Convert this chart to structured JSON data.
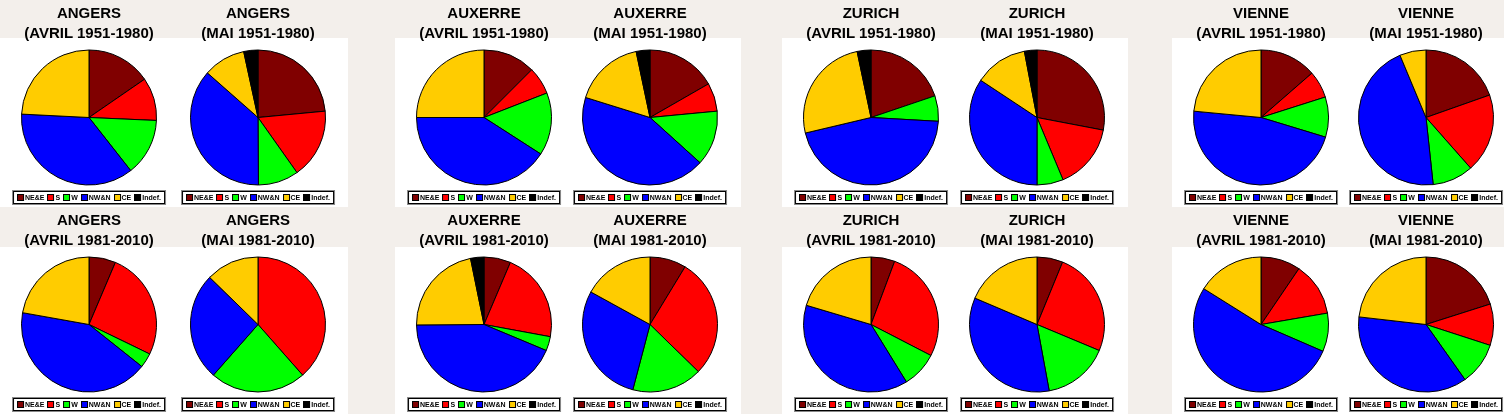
{
  "chart_data": [
    {
      "type": "pie",
      "title": "ANGERS\n(AVRIL 1951-1980)",
      "categories": [
        "NE&E",
        "S",
        "W",
        "NW&N",
        "CE",
        "Indef."
      ],
      "colors": [
        "#800000",
        "#ff0000",
        "#00ff00",
        "#0000ff",
        "#ffcc00",
        "#000000"
      ],
      "values": [
        15.4,
        10.3,
        13.7,
        36.4,
        24.2,
        0
      ],
      "legend": "bottom"
    },
    {
      "type": "pie",
      "title": "ANGERS\n(MAI 1951-1980)",
      "categories": [
        "NE&E",
        "S",
        "W",
        "NW&N",
        "CE",
        "Indef."
      ],
      "colors": [
        "#800000",
        "#ff0000",
        "#00ff00",
        "#0000ff",
        "#ffcc00",
        "#000000"
      ],
      "values": [
        23.5,
        16.7,
        9.7,
        36.6,
        10.1,
        3.4
      ],
      "legend": "bottom"
    },
    {
      "type": "pie",
      "title": "AUXERRE\n(AVRIL 1951-1980)",
      "categories": [
        "NE&E",
        "S",
        "W",
        "NW&N",
        "CE",
        "Indef."
      ],
      "colors": [
        "#800000",
        "#ff0000",
        "#00ff00",
        "#0000ff",
        "#ffcc00",
        "#000000"
      ],
      "values": [
        12.5,
        6.6,
        15,
        40.9,
        25,
        0
      ],
      "legend": "bottom"
    },
    {
      "type": "pie",
      "title": "AUXERRE\n(MAI 1951-1980)",
      "categories": [
        "NE&E",
        "S",
        "W",
        "NW&N",
        "CE",
        "Indef."
      ],
      "colors": [
        "#800000",
        "#ff0000",
        "#00ff00",
        "#0000ff",
        "#ffcc00",
        "#000000"
      ],
      "values": [
        16.7,
        6.8,
        13.2,
        43.1,
        16.9,
        3.3
      ],
      "legend": "bottom"
    },
    {
      "type": "pie",
      "title": "ZURICH\n(AVRIL 1951-1980)",
      "categories": [
        "NE&E",
        "S",
        "W",
        "NW&N",
        "CE",
        "Indef."
      ],
      "colors": [
        "#800000",
        "#ff0000",
        "#00ff00",
        "#0000ff",
        "#ffcc00",
        "#000000"
      ],
      "values": [
        19.8,
        0,
        6.1,
        45.4,
        25.4,
        3.3
      ],
      "legend": "bottom"
    },
    {
      "type": "pie",
      "title": "ZURICH\n(MAI 1951-1980)",
      "categories": [
        "NE&E",
        "S",
        "W",
        "NW&N",
        "CE",
        "Indef."
      ],
      "colors": [
        "#800000",
        "#ff0000",
        "#00ff00",
        "#0000ff",
        "#ffcc00",
        "#000000"
      ],
      "values": [
        28,
        15.7,
        6.3,
        34.3,
        12.7,
        3
      ],
      "legend": "bottom"
    },
    {
      "type": "pie",
      "title": "VIENNE\n(AVRIL 1951-1980)",
      "categories": [
        "NE&E",
        "S",
        "W",
        "NW&N",
        "CE",
        "Indef."
      ],
      "colors": [
        "#800000",
        "#ff0000",
        "#00ff00",
        "#0000ff",
        "#ffcc00",
        "#000000"
      ],
      "values": [
        13.6,
        6.5,
        9.6,
        46.8,
        23.5,
        0
      ],
      "legend": "bottom"
    },
    {
      "type": "pie",
      "title": "VIENNE\n(MAI 1951-1980)",
      "categories": [
        "NE&E",
        "S",
        "W",
        "NW&N",
        "CE",
        "Indef."
      ],
      "colors": [
        "#800000",
        "#ff0000",
        "#00ff00",
        "#0000ff",
        "#ffcc00",
        "#000000"
      ],
      "values": [
        19.6,
        18.9,
        9.8,
        45.4,
        6.3,
        0
      ],
      "legend": "bottom"
    },
    {
      "type": "pie",
      "title": "ANGERS\n(AVRIL 1981-2010)",
      "categories": [
        "NE&E",
        "S",
        "W",
        "NW&N",
        "CE",
        "Indef."
      ],
      "colors": [
        "#800000",
        "#ff0000",
        "#00ff00",
        "#0000ff",
        "#ffcc00",
        "#000000"
      ],
      "values": [
        6.4,
        25.8,
        3.5,
        42.1,
        22.2,
        0
      ],
      "legend": "bottom"
    },
    {
      "type": "pie",
      "title": "ANGERS\n(MAI 1981-2010)",
      "categories": [
        "NE&E",
        "S",
        "W",
        "NW&N",
        "CE",
        "Indef."
      ],
      "colors": [
        "#800000",
        "#ff0000",
        "#00ff00",
        "#0000ff",
        "#ffcc00",
        "#000000"
      ],
      "values": [
        0,
        38.5,
        23,
        25.8,
        12.7,
        0
      ],
      "legend": "bottom"
    },
    {
      "type": "pie",
      "title": "AUXERRE\n(AVRIL 1981-2010)",
      "categories": [
        "NE&E",
        "S",
        "W",
        "NW&N",
        "CE",
        "Indef."
      ],
      "colors": [
        "#800000",
        "#ff0000",
        "#00ff00",
        "#0000ff",
        "#ffcc00",
        "#000000"
      ],
      "values": [
        6.4,
        21.5,
        3.4,
        43.6,
        21.9,
        3.2
      ],
      "legend": "bottom"
    },
    {
      "type": "pie",
      "title": "AUXERRE\n(MAI 1981-2010)",
      "categories": [
        "NE&E",
        "S",
        "W",
        "NW&N",
        "CE",
        "Indef."
      ],
      "colors": [
        "#800000",
        "#ff0000",
        "#00ff00",
        "#0000ff",
        "#ffcc00",
        "#000000"
      ],
      "values": [
        8.7,
        28.6,
        16.8,
        28.9,
        17,
        0
      ],
      "legend": "bottom"
    },
    {
      "type": "pie",
      "title": "ZURICH\n(AVRIL 1981-2010)",
      "categories": [
        "NE&E",
        "S",
        "W",
        "NW&N",
        "CE",
        "Indef."
      ],
      "colors": [
        "#800000",
        "#ff0000",
        "#00ff00",
        "#0000ff",
        "#ffcc00",
        "#000000"
      ],
      "values": [
        5.7,
        26.9,
        8.6,
        38.4,
        20.4,
        0
      ],
      "legend": "bottom"
    },
    {
      "type": "pie",
      "title": "ZURICH\n(MAI 1981-2010)",
      "categories": [
        "NE&E",
        "S",
        "W",
        "NW&N",
        "CE",
        "Indef."
      ],
      "colors": [
        "#800000",
        "#ff0000",
        "#00ff00",
        "#0000ff",
        "#ffcc00",
        "#000000"
      ],
      "values": [
        6.2,
        25.1,
        15.8,
        34.3,
        18.6,
        0
      ],
      "legend": "bottom"
    },
    {
      "type": "pie",
      "title": "VIENNE\n(AVRIL 1981-2010)",
      "categories": [
        "NE&E",
        "S",
        "W",
        "NW&N",
        "CE",
        "Indef."
      ],
      "colors": [
        "#800000",
        "#ff0000",
        "#00ff00",
        "#0000ff",
        "#ffcc00",
        "#000000"
      ],
      "values": [
        9.5,
        12.8,
        9.2,
        52.4,
        16.1,
        0
      ],
      "legend": "bottom"
    },
    {
      "type": "pie",
      "title": "VIENNE\n(MAI 1981-2010)",
      "categories": [
        "NE&E",
        "S",
        "W",
        "NW&N",
        "CE",
        "Indef."
      ],
      "colors": [
        "#800000",
        "#ff0000",
        "#00ff00",
        "#0000ff",
        "#ffcc00",
        "#000000"
      ],
      "values": [
        20.1,
        9.9,
        10.2,
        36.6,
        23.2,
        0
      ],
      "legend": "bottom"
    }
  ]
}
